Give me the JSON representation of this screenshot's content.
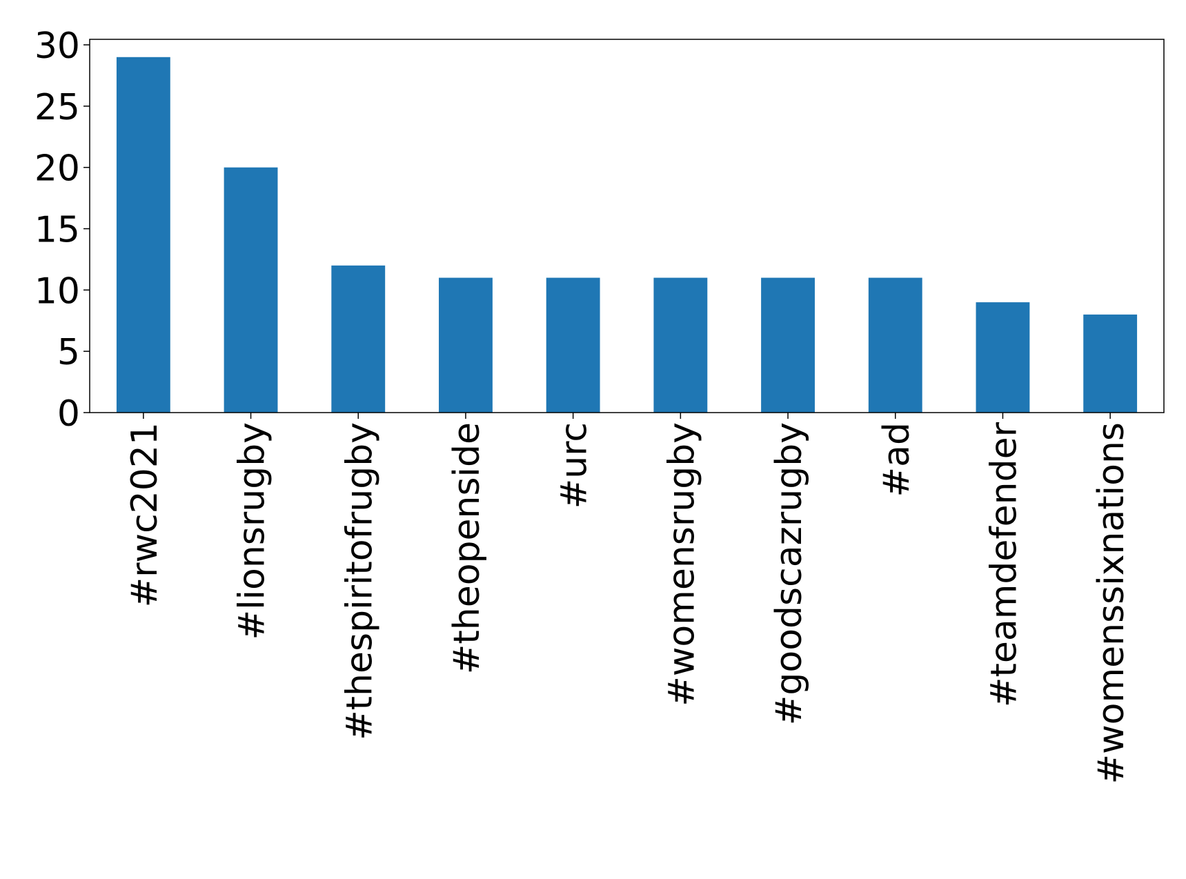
{
  "chart_data": {
    "type": "bar",
    "categories": [
      "#rwc2021",
      "#lionsrugby",
      "#thespiritofrugby",
      "#theopenside",
      "#urc",
      "#womensrugby",
      "#goodscazrugby",
      "#ad",
      "#teamdefender",
      "#womenssixnations"
    ],
    "values": [
      29,
      20,
      12,
      11,
      11,
      11,
      11,
      11,
      9,
      8
    ],
    "color": "#1f77b4",
    "ylim": [
      0,
      30.45
    ],
    "yticks": [
      0,
      5,
      10,
      15,
      20,
      25,
      30
    ],
    "grid": false
  }
}
